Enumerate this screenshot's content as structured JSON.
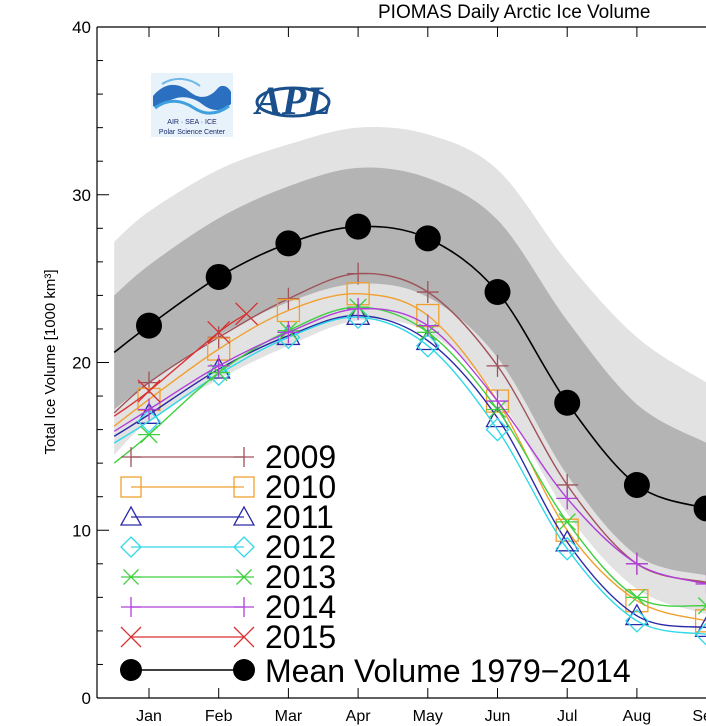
{
  "chart_data": {
    "type": "line",
    "title": "PIOMAS Daily Arctic Ice Volume",
    "ylabel": "Total Ice Volume [1000 km³]",
    "xlabel": "",
    "ylim": [
      0,
      40
    ],
    "yticks": [
      0,
      10,
      20,
      30,
      40
    ],
    "xlim": [
      0.5,
      9.0
    ],
    "categories": [
      "Jan",
      "Feb",
      "Mar",
      "Apr",
      "May",
      "Jun",
      "Jul",
      "Aug",
      "Sep"
    ],
    "grid": false,
    "legend_position": "bottom-left",
    "mean_curve": {
      "x": [
        0.5,
        1.0,
        2.0,
        3.0,
        4.0,
        5.0,
        6.0,
        7.0,
        8.0,
        9.0
      ],
      "y": [
        20.6,
        22.2,
        25.1,
        27.1,
        28.1,
        27.4,
        24.2,
        17.6,
        12.7,
        11.3
      ]
    },
    "band_outer": {
      "x": [
        0.5,
        1.0,
        2.0,
        3.0,
        4.0,
        5.0,
        6.0,
        7.0,
        8.0,
        9.0
      ],
      "upper": [
        27.2,
        29.0,
        31.5,
        33.0,
        34.0,
        33.6,
        31.5,
        26.0,
        21.5,
        18.8
      ],
      "lower": [
        14.5,
        16.5,
        19.0,
        21.0,
        22.5,
        21.8,
        18.0,
        11.0,
        6.5,
        5.0
      ]
    },
    "band_inner": {
      "x": [
        0.5,
        1.0,
        2.0,
        3.0,
        4.0,
        5.0,
        6.0,
        7.0,
        8.0,
        9.0
      ],
      "upper": [
        24.0,
        25.8,
        28.6,
        30.5,
        31.6,
        31.0,
        28.5,
        22.5,
        17.5,
        15.2
      ],
      "lower": [
        17.2,
        18.8,
        21.6,
        23.6,
        24.7,
        23.9,
        20.3,
        13.3,
        8.5,
        7.3
      ]
    },
    "series": [
      {
        "name": "2009",
        "color": "#a0525a",
        "marker": "plus",
        "x": [
          0.5,
          1.0,
          2.0,
          3.0,
          4.0,
          5.0,
          6.0,
          7.0,
          8.0,
          9.0
        ],
        "y": [
          17.0,
          18.8,
          21.5,
          23.8,
          25.3,
          24.2,
          19.8,
          12.7,
          8.0,
          6.9
        ]
      },
      {
        "name": "2010",
        "color": "#f0a030",
        "marker": "square",
        "x": [
          0.5,
          1.0,
          2.0,
          3.0,
          4.0,
          5.0,
          6.0,
          7.0,
          8.0,
          9.0
        ],
        "y": [
          16.2,
          17.8,
          20.8,
          23.1,
          24.1,
          22.8,
          17.7,
          10.0,
          5.8,
          4.6
        ]
      },
      {
        "name": "2011",
        "color": "#2a2aa8",
        "marker": "triangle",
        "x": [
          0.5,
          1.0,
          2.0,
          3.0,
          4.0,
          5.0,
          6.0,
          7.0,
          8.0,
          9.0
        ],
        "y": [
          15.6,
          16.9,
          19.6,
          21.6,
          22.8,
          21.3,
          16.7,
          9.3,
          4.9,
          4.2
        ]
      },
      {
        "name": "2012",
        "color": "#30d8e8",
        "marker": "diamond",
        "x": [
          0.5,
          1.0,
          2.0,
          3.0,
          4.0,
          5.0,
          6.0,
          7.0,
          8.0,
          9.0
        ],
        "y": [
          15.2,
          16.5,
          19.3,
          21.5,
          22.7,
          21.0,
          16.0,
          8.9,
          4.6,
          3.8
        ]
      },
      {
        "name": "2013",
        "color": "#40d040",
        "marker": "asterisk",
        "x": [
          0.5,
          1.0,
          2.0,
          3.0,
          4.0,
          5.0,
          6.0,
          7.0,
          8.0,
          9.0
        ],
        "y": [
          14.0,
          15.7,
          19.4,
          21.9,
          23.3,
          21.8,
          17.2,
          10.5,
          6.0,
          5.5
        ]
      },
      {
        "name": "2014",
        "color": "#b040d8",
        "marker": "plus",
        "x": [
          0.5,
          1.0,
          2.0,
          3.0,
          4.0,
          5.0,
          6.0,
          7.0,
          8.0,
          9.0
        ],
        "y": [
          15.9,
          17.2,
          19.8,
          21.8,
          23.2,
          22.2,
          17.7,
          11.9,
          8.0,
          6.8
        ]
      },
      {
        "name": "2015",
        "color": "#d83030",
        "marker": "cross",
        "x": [
          0.5,
          1.0,
          2.0,
          2.4
        ],
        "y": [
          16.8,
          18.3,
          21.8,
          22.9
        ]
      }
    ],
    "mean_series_name": "Mean Volume 1979−2014",
    "logos": {
      "psc_text": "AIR  ·  SEA  ·  ICE",
      "psc_name": "Polar Science Center",
      "apl_text": "APL"
    }
  }
}
